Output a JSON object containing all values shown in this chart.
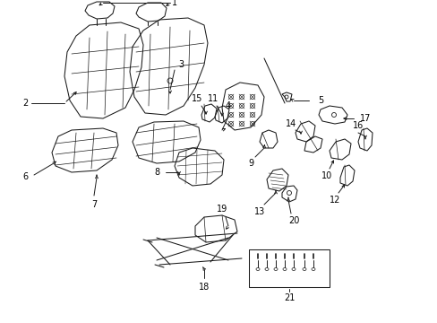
{
  "bg_color": "#ffffff",
  "line_color": "#1a1a1a",
  "label_color": "#000000",
  "label_fontsize": 7.0,
  "leader_lw": 0.7,
  "part_lw": 0.75,
  "fig_width": 4.89,
  "fig_height": 3.6,
  "dpi": 100
}
